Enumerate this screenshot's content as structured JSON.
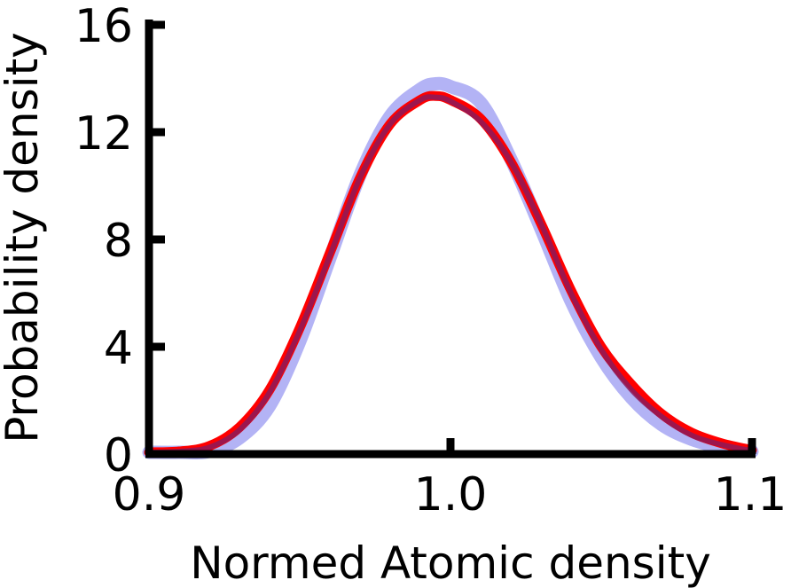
{
  "chart_data": {
    "type": "line",
    "title": "",
    "xlabel": "Normed Atomic density",
    "ylabel": "Probability density",
    "xlim": [
      0.9,
      1.1
    ],
    "ylim": [
      0,
      16
    ],
    "xticks": [
      0.9,
      1.0,
      1.1
    ],
    "xtick_labels": [
      "0.9",
      "1.0",
      "1.1"
    ],
    "yticks": [
      0,
      4,
      8,
      12,
      16
    ],
    "ytick_labels": [
      "0",
      "4",
      "8",
      "12",
      "16"
    ],
    "grid": false,
    "legend": "none",
    "series": [
      {
        "color": "#b3b3f5",
        "x": [
          0.9,
          0.91,
          0.92,
          0.93,
          0.94,
          0.95,
          0.96,
          0.97,
          0.98,
          0.99,
          0.995,
          1.0,
          1.01,
          1.02,
          1.03,
          1.04,
          1.05,
          1.06,
          1.07,
          1.08,
          1.09,
          1.1
        ],
        "y": [
          0.0,
          0.05,
          0.1,
          0.6,
          1.8,
          4.2,
          7.3,
          10.4,
          12.6,
          13.6,
          13.8,
          13.7,
          13.1,
          11.0,
          8.4,
          5.7,
          3.6,
          2.1,
          1.1,
          0.55,
          0.25,
          0.1
        ]
      },
      {
        "color": "#ff0000",
        "x": [
          0.9,
          0.91,
          0.92,
          0.93,
          0.94,
          0.95,
          0.96,
          0.97,
          0.98,
          0.99,
          0.995,
          1.0,
          1.01,
          1.02,
          1.03,
          1.04,
          1.05,
          1.06,
          1.07,
          1.08,
          1.09,
          1.1
        ],
        "y": [
          0.0,
          0.1,
          0.3,
          1.0,
          2.4,
          4.7,
          7.5,
          10.3,
          12.3,
          13.2,
          13.35,
          13.2,
          12.5,
          10.9,
          8.6,
          6.1,
          4.0,
          2.6,
          1.5,
          0.8,
          0.4,
          0.15
        ]
      },
      {
        "color": "#8b1a5a",
        "x": [
          0.9,
          0.91,
          0.92,
          0.93,
          0.94,
          0.95,
          0.96,
          0.97,
          0.98,
          0.99,
          0.995,
          1.0,
          1.01,
          1.02,
          1.03,
          1.04,
          1.05,
          1.06,
          1.07,
          1.08,
          1.09,
          1.1
        ],
        "y": [
          0.0,
          0.1,
          0.25,
          0.9,
          2.3,
          4.6,
          7.4,
          10.3,
          12.3,
          13.2,
          13.3,
          13.15,
          12.4,
          10.9,
          8.6,
          6.0,
          3.9,
          2.4,
          1.4,
          0.7,
          0.35,
          0.12
        ]
      }
    ]
  }
}
